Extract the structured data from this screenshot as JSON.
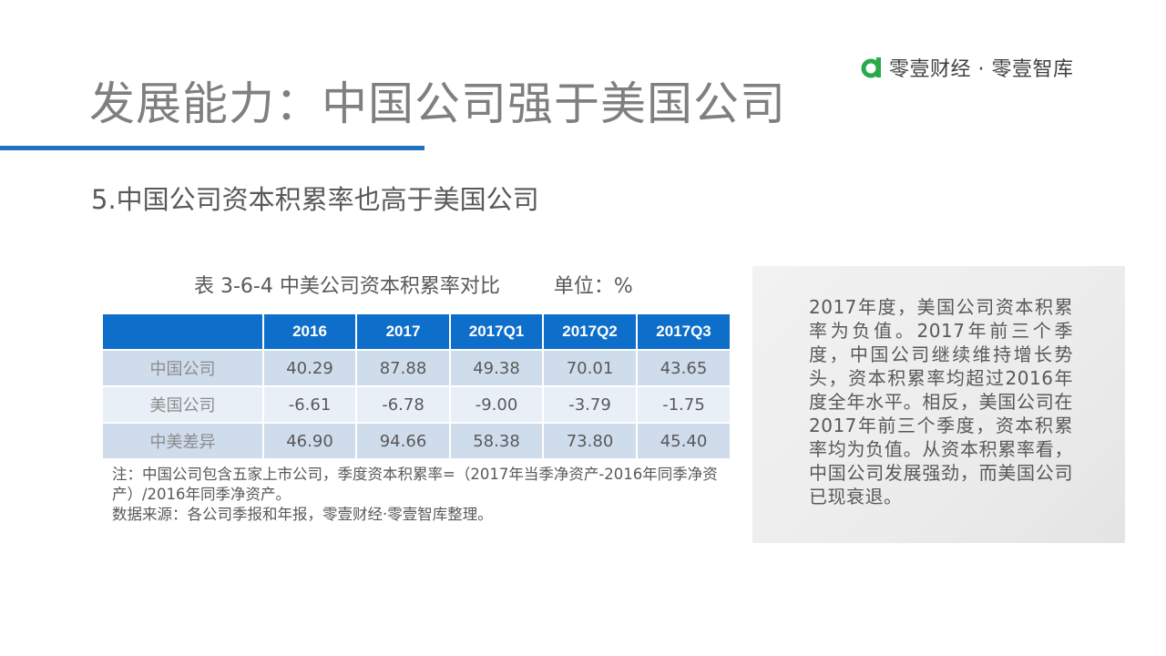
{
  "brand": {
    "name": "零壹财经 · 零壹智库",
    "logo_color": "#2aa94a"
  },
  "title": "发展能力：中国公司强于美国公司",
  "subtitle": "5.中国公司资本积累率也高于美国公司",
  "table": {
    "caption": "表 3-6-4 中美公司资本积累率对比",
    "unit": "单位：%",
    "header_color": "#0e6fcb",
    "columns": [
      "",
      "2016",
      "2017",
      "2017Q1",
      "2017Q2",
      "2017Q3"
    ],
    "rows": [
      {
        "label": "中国公司",
        "values": [
          "40.29",
          "87.88",
          "49.38",
          "70.01",
          "43.65"
        ]
      },
      {
        "label": "美国公司",
        "values": [
          "-6.61",
          "-6.78",
          "-9.00",
          "-3.79",
          "-1.75"
        ]
      },
      {
        "label": "中美差异",
        "values": [
          "46.90",
          "94.66",
          "58.38",
          "73.80",
          "45.40"
        ]
      }
    ]
  },
  "notes": {
    "line1": "注：中国公司包含五家上市公司，季度资本积累率=（2017年当季净资产-2016年同季净资产）/2016年同季净资产。",
    "line2": "数据来源：各公司季报和年报，零壹财经·零壹智库整理。"
  },
  "sidebar_text": "2017年度，美国公司资本积累率为负值。2017年前三个季度，中国公司继续维持增长势头，资本积累率均超过2016年度全年水平。相反，美国公司在2017年前三个季度，资本积累率均为负值。从资本积累率看，中国公司发展强劲，而美国公司已现衰退。"
}
